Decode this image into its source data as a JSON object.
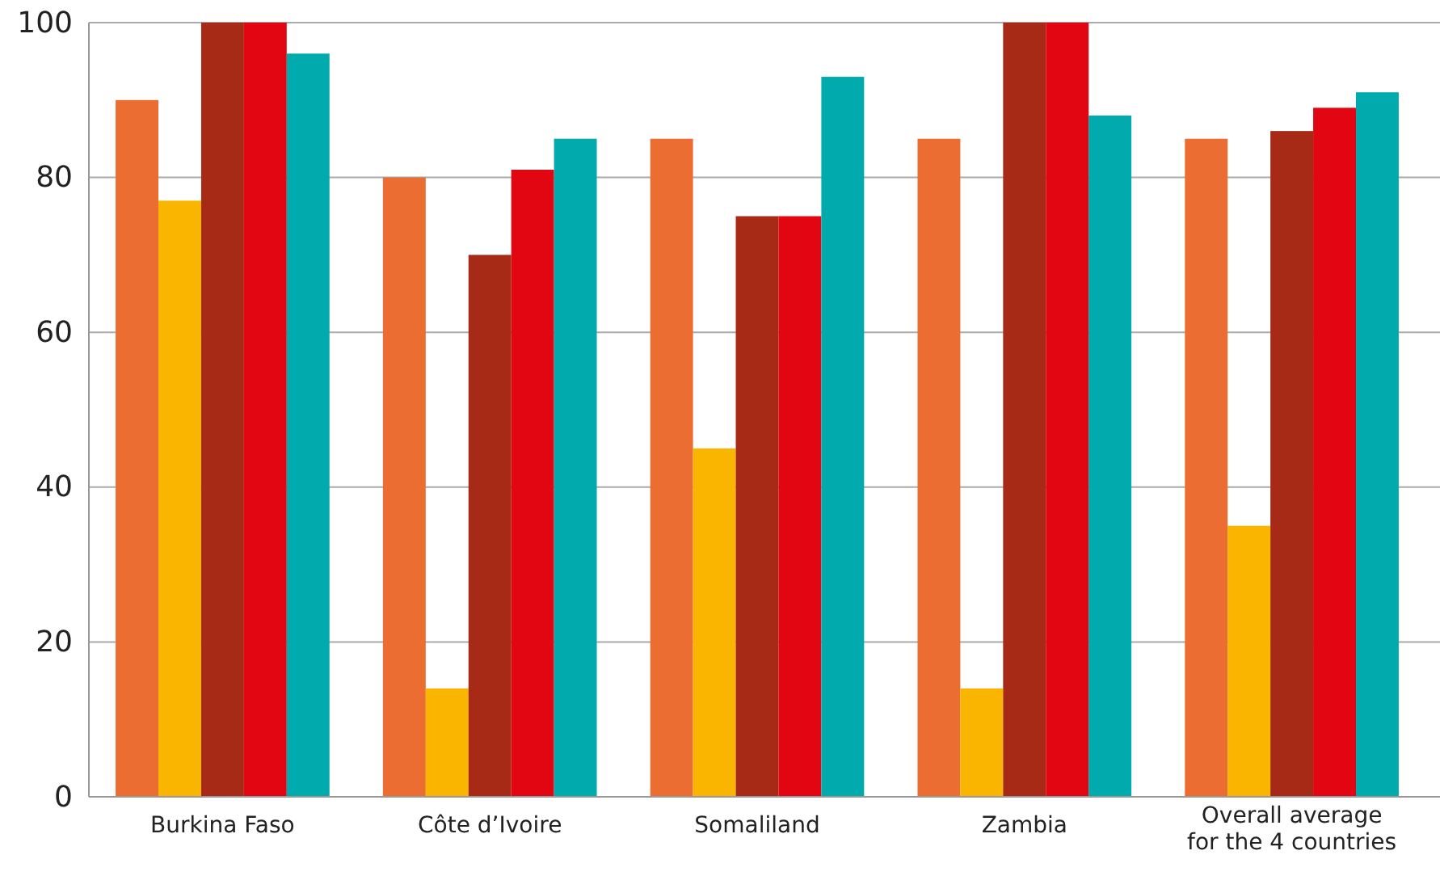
{
  "chart_data": {
    "type": "bar",
    "categories": [
      "Burkina Faso",
      "Côte d’Ivoire",
      "Somaliland",
      "Zambia",
      "Overall average for the 4 countries"
    ],
    "series": [
      {
        "color": "#ec6d32",
        "values": [
          90,
          80,
          85,
          85,
          85
        ]
      },
      {
        "color": "#f9b500",
        "values": [
          77,
          14,
          45,
          14,
          35
        ]
      },
      {
        "color": "#a72a17",
        "values": [
          100,
          70,
          75,
          100,
          86
        ]
      },
      {
        "color": "#e20613",
        "values": [
          100,
          81,
          75,
          100,
          89
        ]
      },
      {
        "color": "#00aaad",
        "values": [
          96,
          85,
          93,
          88,
          91
        ]
      }
    ],
    "ylim": [
      0,
      100
    ],
    "yticks": [
      0,
      20,
      40,
      60,
      80,
      100
    ],
    "grid": "y"
  }
}
